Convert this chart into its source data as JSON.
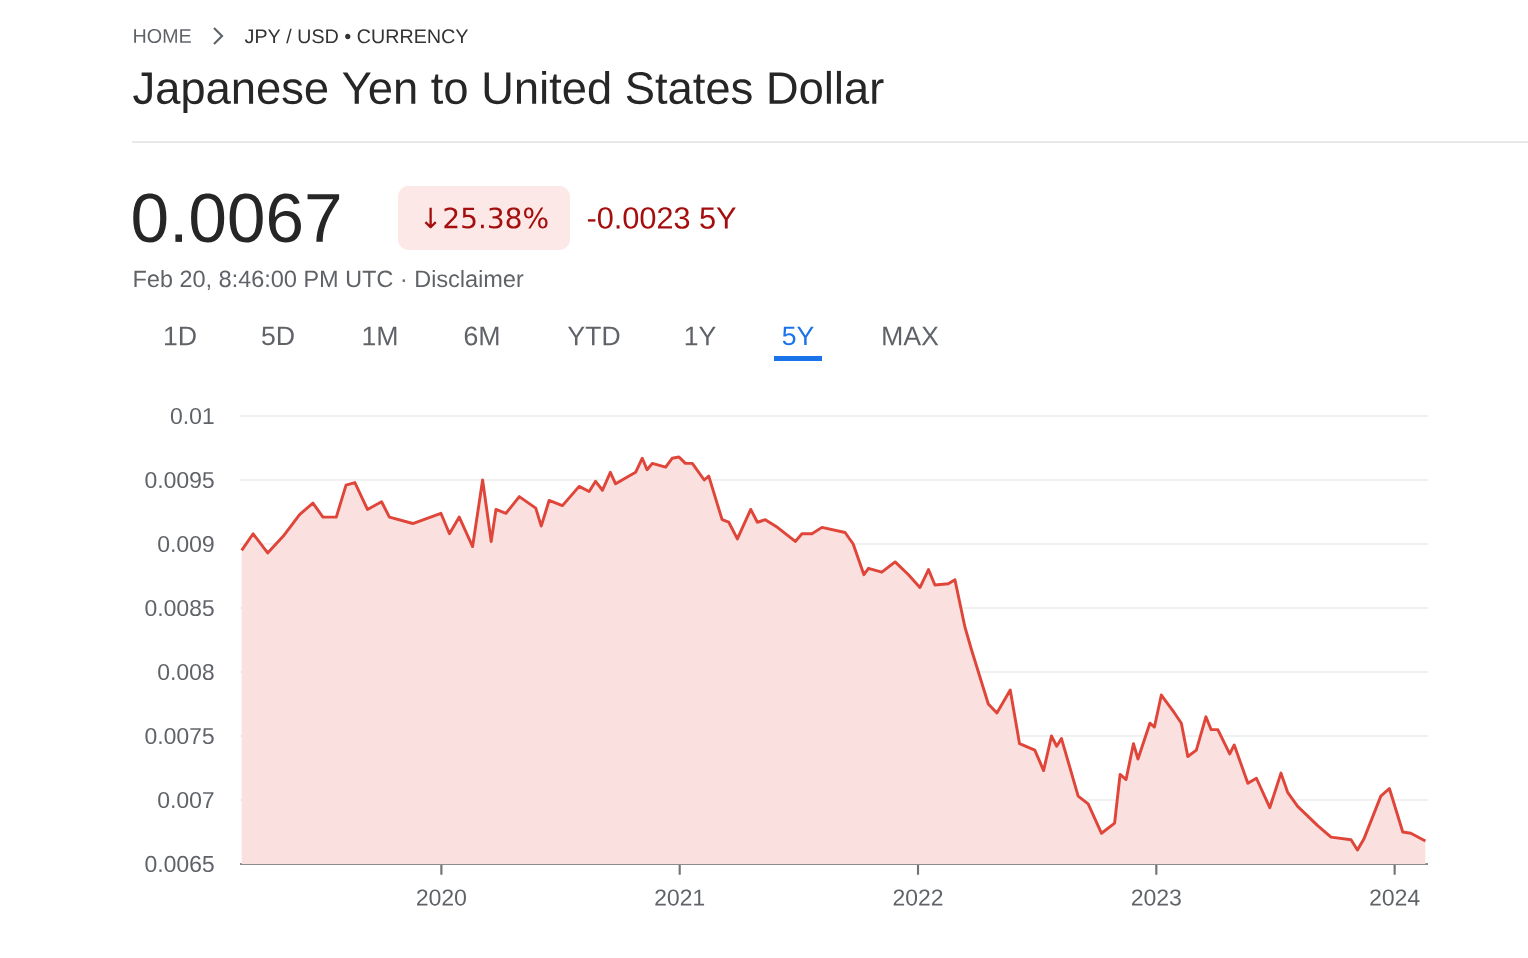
{
  "chart_data": {
    "type": "area",
    "title": "Japanese Yen to United States Dollar",
    "annotations": [
      "HOME",
      "JPY / USD • CURRENCY",
      "0.0067",
      "↓25.38%",
      "-0.0023 5Y",
      "Feb 20, 8:46:00 PM UTC · Disclaimer",
      "1D",
      "5D",
      "1M",
      "6M",
      "YTD",
      "1Y",
      "5Y",
      "MAX"
    ],
    "x": [
      2019.162,
      2019.21,
      2019.271,
      2019.336,
      2019.405,
      2019.461,
      2019.503,
      2019.559,
      2019.6,
      2019.637,
      2019.69,
      2019.749,
      2019.782,
      2019.88,
      2019.998,
      2020.034,
      2020.075,
      2020.131,
      2020.173,
      2020.209,
      2020.229,
      2020.271,
      2020.327,
      2020.396,
      2020.419,
      2020.452,
      2020.508,
      2020.578,
      2020.62,
      2020.647,
      2020.676,
      2020.709,
      2020.731,
      2020.815,
      2020.843,
      2020.863,
      2020.885,
      2020.941,
      2020.969,
      2020.997,
      2021.024,
      2021.053,
      2021.103,
      2021.122,
      2021.178,
      2021.206,
      2021.242,
      2021.298,
      2021.326,
      2021.359,
      2021.41,
      2021.485,
      2021.513,
      2021.555,
      2021.597,
      2021.694,
      2021.728,
      2021.773,
      2021.792,
      2021.848,
      2021.904,
      2021.96,
      2022.008,
      2022.044,
      2022.071,
      2022.127,
      2022.155,
      2022.197,
      2022.225,
      2022.295,
      2022.331,
      2022.387,
      2022.426,
      2022.49,
      2022.527,
      2022.56,
      2022.582,
      2022.602,
      2022.672,
      2022.714,
      2022.77,
      2022.825,
      2022.848,
      2022.873,
      2022.904,
      2022.923,
      2022.973,
      2022.992,
      2023.021,
      2023.076,
      2023.105,
      2023.132,
      2023.168,
      2023.208,
      2023.23,
      2023.258,
      2023.308,
      2023.327,
      2023.384,
      2023.42,
      2023.476,
      2023.523,
      2023.551,
      2023.593,
      2023.677,
      2023.733,
      2023.817,
      2023.844,
      2023.872,
      2023.942,
      2023.978,
      2024.006,
      2024.034,
      2024.068,
      2024.129
    ],
    "series": [
      {
        "color": "#e0453a",
        "values": [
          0.00895,
          0.00908,
          0.00893,
          0.00906,
          0.00923,
          0.00932,
          0.00921,
          0.00921,
          0.00946,
          0.00948,
          0.00927,
          0.00933,
          0.00921,
          0.00916,
          0.00924,
          0.00908,
          0.00921,
          0.00898,
          0.0095,
          0.00902,
          0.00927,
          0.00924,
          0.00937,
          0.00928,
          0.00914,
          0.00934,
          0.0093,
          0.00945,
          0.00941,
          0.00949,
          0.00942,
          0.00956,
          0.00947,
          0.00956,
          0.00967,
          0.00958,
          0.00963,
          0.0096,
          0.00967,
          0.00968,
          0.00963,
          0.00963,
          0.0095,
          0.00953,
          0.00919,
          0.00917,
          0.00904,
          0.00927,
          0.00917,
          0.00919,
          0.00913,
          0.00902,
          0.00908,
          0.00908,
          0.00913,
          0.00909,
          0.009,
          0.00876,
          0.00881,
          0.00878,
          0.00886,
          0.00876,
          0.00866,
          0.0088,
          0.00868,
          0.00869,
          0.00872,
          0.00835,
          0.00817,
          0.00775,
          0.00768,
          0.00786,
          0.00744,
          0.00739,
          0.00723,
          0.0075,
          0.00742,
          0.00748,
          0.00703,
          0.00697,
          0.00674,
          0.00682,
          0.0072,
          0.00716,
          0.00744,
          0.00732,
          0.0076,
          0.00757,
          0.00782,
          0.00768,
          0.0076,
          0.00734,
          0.00739,
          0.00765,
          0.00755,
          0.00755,
          0.00736,
          0.00743,
          0.00713,
          0.00717,
          0.00694,
          0.00721,
          0.00706,
          0.00695,
          0.0068,
          0.00671,
          0.00669,
          0.00661,
          0.0067,
          0.00703,
          0.00709,
          0.00692,
          0.00675,
          0.00674,
          0.00668
        ]
      }
    ],
    "xlim": [
      2019.155,
      2024.14
    ],
    "xticks": [
      2020,
      2021,
      2022,
      2023,
      2024
    ],
    "ylim": [
      0.0065,
      0.01
    ],
    "yticks": [
      0.0065,
      0.007,
      0.0075,
      0.008,
      0.0085,
      0.009,
      0.0095,
      0.01
    ],
    "grid": "y"
  }
}
